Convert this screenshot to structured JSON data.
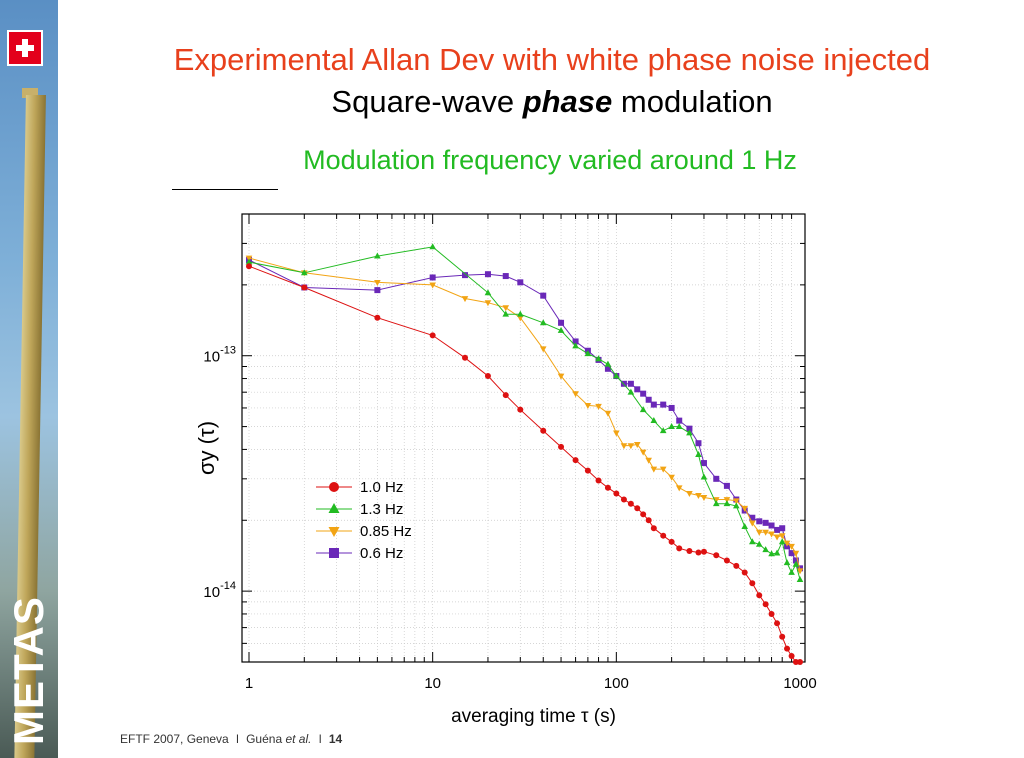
{
  "title": "Experimental Allan Dev with white phase noise injected",
  "subtitle_parts": [
    "Square-wave ",
    "phase",
    " modulation"
  ],
  "caption": "Modulation frequency varied around 1 Hz",
  "brand": "METAS",
  "footer": {
    "event": "EFTF 2007, Geneva",
    "sep": "l",
    "author": "Guéna",
    "etal": "et al.",
    "page": "14"
  },
  "colors": {
    "title": "#e8401c",
    "caption": "#22bb22"
  },
  "chart_data": {
    "type": "line",
    "xscale": "log",
    "yscale": "log",
    "xlim": [
      1,
      1000
    ],
    "ylim": [
      5e-15,
      4e-13
    ],
    "xlabel": "averaging time τ (s)",
    "ylabel": "σy (τ)",
    "x_ticks": [
      {
        "value": 1,
        "label": "1"
      },
      {
        "value": 10,
        "label": "10"
      },
      {
        "value": 100,
        "label": "100"
      },
      {
        "value": 1000,
        "label": "1000"
      }
    ],
    "y_ticks": [
      {
        "value": 1e-13,
        "base": "10",
        "exp": "-13"
      },
      {
        "value": 1e-14,
        "base": "10",
        "exp": "-14"
      }
    ],
    "grid": true,
    "legend": "center",
    "series": [
      {
        "name": "1.0 Hz",
        "color": "#dd1111",
        "marker": "circle",
        "x": [
          1,
          2,
          5,
          10,
          15,
          20,
          25,
          30,
          40,
          50,
          60,
          70,
          80,
          90,
          100,
          110,
          120,
          130,
          140,
          150,
          160,
          180,
          200,
          220,
          250,
          280,
          300,
          350,
          400,
          450,
          500,
          550,
          600,
          650,
          700,
          750,
          800,
          850,
          900,
          950,
          1000
        ],
        "y": [
          2.4e-13,
          1.95e-13,
          1.45e-13,
          1.22e-13,
          9.8e-14,
          8.2e-14,
          6.8e-14,
          5.9e-14,
          4.8e-14,
          4.1e-14,
          3.6e-14,
          3.25e-14,
          2.95e-14,
          2.75e-14,
          2.6e-14,
          2.45e-14,
          2.35e-14,
          2.25e-14,
          2.12e-14,
          2e-14,
          1.85e-14,
          1.72e-14,
          1.62e-14,
          1.52e-14,
          1.48e-14,
          1.46e-14,
          1.47e-14,
          1.42e-14,
          1.35e-14,
          1.28e-14,
          1.2e-14,
          1.08e-14,
          9.6e-15,
          8.8e-15,
          8e-15,
          7.3e-15,
          6.4e-15,
          5.7e-15,
          5.3e-15,
          5e-15,
          5e-15
        ]
      },
      {
        "name": "1.3 Hz",
        "color": "#22bb22",
        "marker": "triangle-up",
        "x": [
          1,
          2,
          5,
          10,
          20,
          25,
          30,
          40,
          50,
          60,
          70,
          80,
          90,
          100,
          120,
          140,
          160,
          180,
          200,
          220,
          250,
          280,
          300,
          350,
          400,
          450,
          500,
          550,
          600,
          650,
          700,
          750,
          800,
          850,
          900,
          950,
          1000
        ],
        "y": [
          2.5e-13,
          2.25e-13,
          2.65e-13,
          2.9e-13,
          1.85e-13,
          1.5e-13,
          1.5e-13,
          1.38e-13,
          1.28e-13,
          1.1e-13,
          1.02e-13,
          9.7e-14,
          9.2e-14,
          8.2e-14,
          7e-14,
          5.9e-14,
          5.3e-14,
          4.8e-14,
          5e-14,
          5e-14,
          4.7e-14,
          3.8e-14,
          3.05e-14,
          2.35e-14,
          2.35e-14,
          2.3e-14,
          1.88e-14,
          1.62e-14,
          1.58e-14,
          1.5e-14,
          1.44e-14,
          1.45e-14,
          1.62e-14,
          1.32e-14,
          1.2e-14,
          1.3e-14,
          1.12e-14
        ]
      },
      {
        "name": "0.85 Hz",
        "color": "#f2a414",
        "marker": "triangle-down",
        "x": [
          1,
          2,
          5,
          10,
          15,
          20,
          25,
          30,
          40,
          50,
          60,
          70,
          80,
          90,
          100,
          110,
          120,
          130,
          140,
          150,
          160,
          180,
          200,
          220,
          250,
          280,
          300,
          350,
          400,
          450,
          500,
          550,
          600,
          650,
          700,
          750,
          800,
          850,
          900,
          950,
          1000
        ],
        "y": [
          2.6e-13,
          2.25e-13,
          2.05e-13,
          2e-13,
          1.75e-13,
          1.68e-13,
          1.6e-13,
          1.45e-13,
          1.07e-13,
          8.2e-14,
          6.9e-14,
          6.15e-14,
          6.1e-14,
          5.7e-14,
          4.7e-14,
          4.15e-14,
          4.15e-14,
          4.2e-14,
          3.9e-14,
          3.6e-14,
          3.3e-14,
          3.3e-14,
          3.05e-14,
          2.75e-14,
          2.6e-14,
          2.55e-14,
          2.5e-14,
          2.45e-14,
          2.45e-14,
          2.42e-14,
          2.25e-14,
          1.95e-14,
          1.78e-14,
          1.78e-14,
          1.75e-14,
          1.7e-14,
          1.72e-14,
          1.6e-14,
          1.55e-14,
          1.45e-14,
          1.22e-14
        ]
      },
      {
        "name": "0.6 Hz",
        "color": "#6a28b8",
        "marker": "square",
        "x": [
          1,
          2,
          5,
          10,
          15,
          20,
          25,
          30,
          40,
          50,
          60,
          70,
          80,
          90,
          100,
          110,
          120,
          130,
          140,
          150,
          160,
          180,
          200,
          220,
          250,
          280,
          300,
          350,
          400,
          450,
          500,
          550,
          600,
          650,
          700,
          750,
          800,
          850,
          900,
          950,
          1000
        ],
        "y": [
          2.55e-13,
          1.95e-13,
          1.9e-13,
          2.15e-13,
          2.2e-13,
          2.22e-13,
          2.18e-13,
          2.05e-13,
          1.8e-13,
          1.38e-13,
          1.15e-13,
          1.05e-13,
          9.6e-14,
          8.8e-14,
          8.2e-14,
          7.6e-14,
          7.6e-14,
          7.2e-14,
          6.9e-14,
          6.5e-14,
          6.2e-14,
          6.2e-14,
          6e-14,
          5.3e-14,
          4.9e-14,
          4.25e-14,
          3.5e-14,
          3e-14,
          2.8e-14,
          2.45e-14,
          2.2e-14,
          2.05e-14,
          1.98e-14,
          1.95e-14,
          1.9e-14,
          1.82e-14,
          1.85e-14,
          1.55e-14,
          1.45e-14,
          1.35e-14,
          1.25e-14
        ]
      }
    ]
  }
}
